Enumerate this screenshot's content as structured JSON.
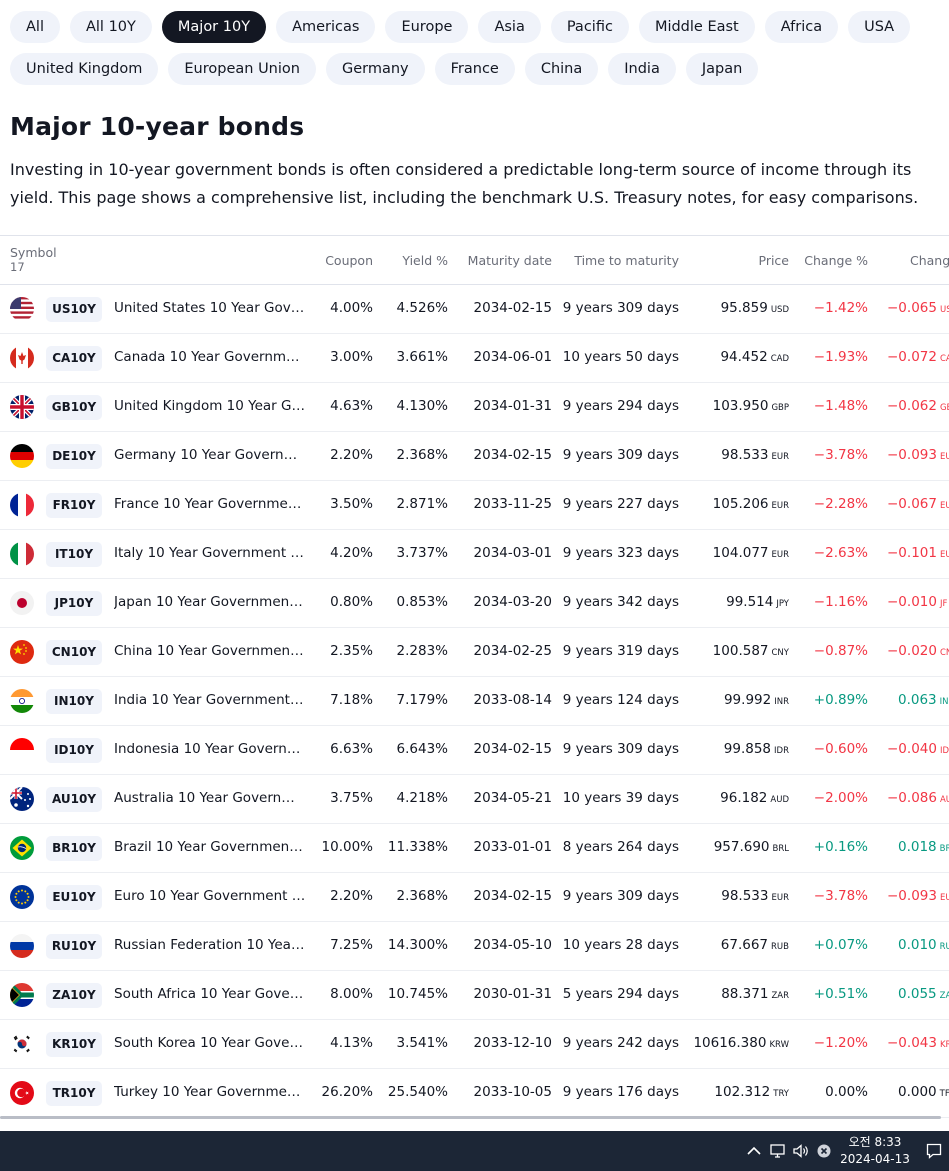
{
  "filters": {
    "row1": [
      "All",
      "All 10Y",
      "Major 10Y",
      "Americas",
      "Europe",
      "Asia",
      "Pacific",
      "Middle East",
      "Africa",
      "USA"
    ],
    "row2": [
      "United Kingdom",
      "European Union",
      "Germany",
      "France",
      "China",
      "India",
      "Japan"
    ],
    "active": "Major 10Y"
  },
  "page": {
    "title": "Major 10-year bonds",
    "description": "Investing in 10-year government bonds is often considered a predictable long-term source of income through its yield. This page shows a comprehensive list, including the benchmark U.S. Treasury notes, for easy comparisons."
  },
  "table": {
    "headers": {
      "symbol": "Symbol",
      "count": "17",
      "coupon": "Coupon",
      "yield": "Yield %",
      "maturity": "Maturity date",
      "time": "Time to maturity",
      "price": "Price",
      "change_pct": "Change %",
      "change": "Chang"
    },
    "rows": [
      {
        "flag": "us-flag-icon",
        "symbol": "US10Y",
        "name": "United States 10 Year Government Bond",
        "coupon": "4.00%",
        "yield": "4.526%",
        "maturity": "2034-02-15",
        "time": "9 years 309 days",
        "price": "95.859",
        "currency": "USD",
        "change_pct": "−1.42%",
        "change": "−0.065",
        "change_unit": "US",
        "direction": "down"
      },
      {
        "flag": "ca-flag-icon",
        "symbol": "CA10Y",
        "name": "Canada 10 Year Government Bond",
        "coupon": "3.00%",
        "yield": "3.661%",
        "maturity": "2034-06-01",
        "time": "10 years 50 days",
        "price": "94.452",
        "currency": "CAD",
        "change_pct": "−1.93%",
        "change": "−0.072",
        "change_unit": "CA",
        "direction": "down"
      },
      {
        "flag": "gb-flag-icon",
        "symbol": "GB10Y",
        "name": "United Kingdom 10 Year Government Bond",
        "coupon": "4.63%",
        "yield": "4.130%",
        "maturity": "2034-01-31",
        "time": "9 years 294 days",
        "price": "103.950",
        "currency": "GBP",
        "change_pct": "−1.48%",
        "change": "−0.062",
        "change_unit": "GE",
        "direction": "down"
      },
      {
        "flag": "de-flag-icon",
        "symbol": "DE10Y",
        "name": "Germany 10 Year Government Bond",
        "coupon": "2.20%",
        "yield": "2.368%",
        "maturity": "2034-02-15",
        "time": "9 years 309 days",
        "price": "98.533",
        "currency": "EUR",
        "change_pct": "−3.78%",
        "change": "−0.093",
        "change_unit": "EU",
        "direction": "down"
      },
      {
        "flag": "fr-flag-icon",
        "symbol": "FR10Y",
        "name": "France 10 Year Government Bond",
        "coupon": "3.50%",
        "yield": "2.871%",
        "maturity": "2033-11-25",
        "time": "9 years 227 days",
        "price": "105.206",
        "currency": "EUR",
        "change_pct": "−2.28%",
        "change": "−0.067",
        "change_unit": "EU",
        "direction": "down"
      },
      {
        "flag": "it-flag-icon",
        "symbol": "IT10Y",
        "name": "Italy 10 Year Government Bond",
        "coupon": "4.20%",
        "yield": "3.737%",
        "maturity": "2034-03-01",
        "time": "9 years 323 days",
        "price": "104.077",
        "currency": "EUR",
        "change_pct": "−2.63%",
        "change": "−0.101",
        "change_unit": "EU",
        "direction": "down"
      },
      {
        "flag": "jp-flag-icon",
        "symbol": "JP10Y",
        "name": "Japan 10 Year Government Bond",
        "coupon": "0.80%",
        "yield": "0.853%",
        "maturity": "2034-03-20",
        "time": "9 years 342 days",
        "price": "99.514",
        "currency": "JPY",
        "change_pct": "−1.16%",
        "change": "−0.010",
        "change_unit": "JF",
        "direction": "down"
      },
      {
        "flag": "cn-flag-icon",
        "symbol": "CN10Y",
        "name": "China 10 Year Government Bond",
        "coupon": "2.35%",
        "yield": "2.283%",
        "maturity": "2034-02-25",
        "time": "9 years 319 days",
        "price": "100.587",
        "currency": "CNY",
        "change_pct": "−0.87%",
        "change": "−0.020",
        "change_unit": "CN",
        "direction": "down"
      },
      {
        "flag": "in-flag-icon",
        "symbol": "IN10Y",
        "name": "India 10 Year Government Bond",
        "coupon": "7.18%",
        "yield": "7.179%",
        "maturity": "2033-08-14",
        "time": "9 years 124 days",
        "price": "99.992",
        "currency": "INR",
        "change_pct": "+0.89%",
        "change": "0.063",
        "change_unit": "IN",
        "direction": "up"
      },
      {
        "flag": "id-flag-icon",
        "symbol": "ID10Y",
        "name": "Indonesia 10 Year Government Bond",
        "coupon": "6.63%",
        "yield": "6.643%",
        "maturity": "2034-02-15",
        "time": "9 years 309 days",
        "price": "99.858",
        "currency": "IDR",
        "change_pct": "−0.60%",
        "change": "−0.040",
        "change_unit": "ID",
        "direction": "down"
      },
      {
        "flag": "au-flag-icon",
        "symbol": "AU10Y",
        "name": "Australia 10 Year Government Bond",
        "coupon": "3.75%",
        "yield": "4.218%",
        "maturity": "2034-05-21",
        "time": "10 years 39 days",
        "price": "96.182",
        "currency": "AUD",
        "change_pct": "−2.00%",
        "change": "−0.086",
        "change_unit": "AU",
        "direction": "down"
      },
      {
        "flag": "br-flag-icon",
        "symbol": "BR10Y",
        "name": "Brazil 10 Year Government Bond",
        "coupon": "10.00%",
        "yield": "11.338%",
        "maturity": "2033-01-01",
        "time": "8 years 264 days",
        "price": "957.690",
        "currency": "BRL",
        "change_pct": "+0.16%",
        "change": "0.018",
        "change_unit": "BR",
        "direction": "up"
      },
      {
        "flag": "eu-flag-icon",
        "symbol": "EU10Y",
        "name": "Euro 10 Year Government Bond",
        "coupon": "2.20%",
        "yield": "2.368%",
        "maturity": "2034-02-15",
        "time": "9 years 309 days",
        "price": "98.533",
        "currency": "EUR",
        "change_pct": "−3.78%",
        "change": "−0.093",
        "change_unit": "EU",
        "direction": "down"
      },
      {
        "flag": "ru-flag-icon",
        "symbol": "RU10Y",
        "name": "Russian Federation 10 Year Government Bond",
        "coupon": "7.25%",
        "yield": "14.300%",
        "maturity": "2034-05-10",
        "time": "10 years 28 days",
        "price": "67.667",
        "currency": "RUB",
        "change_pct": "+0.07%",
        "change": "0.010",
        "change_unit": "RU",
        "direction": "up"
      },
      {
        "flag": "za-flag-icon",
        "symbol": "ZA10Y",
        "name": "South Africa 10 Year Government Bond",
        "coupon": "8.00%",
        "yield": "10.745%",
        "maturity": "2030-01-31",
        "time": "5 years 294 days",
        "price": "88.371",
        "currency": "ZAR",
        "change_pct": "+0.51%",
        "change": "0.055",
        "change_unit": "ZA",
        "direction": "up"
      },
      {
        "flag": "kr-flag-icon",
        "symbol": "KR10Y",
        "name": "South Korea 10 Year Government Bond",
        "coupon": "4.13%",
        "yield": "3.541%",
        "maturity": "2033-12-10",
        "time": "9 years 242 days",
        "price": "10616.380",
        "currency": "KRW",
        "change_pct": "−1.20%",
        "change": "−0.043",
        "change_unit": "KR",
        "direction": "down"
      },
      {
        "flag": "tr-flag-icon",
        "symbol": "TR10Y",
        "name": "Turkey 10 Year Government Bond",
        "coupon": "26.20%",
        "yield": "25.540%",
        "maturity": "2033-10-05",
        "time": "9 years 176 days",
        "price": "102.312",
        "currency": "TRY",
        "change_pct": "0.00%",
        "change": "0.000",
        "change_unit": "TF",
        "direction": "flat"
      }
    ]
  },
  "colors": {
    "negative": "#f23645",
    "positive": "#089981",
    "chip_bg": "#f0f3fa",
    "chip_active_bg": "#131722",
    "taskbar_bg": "#1c2636"
  },
  "taskbar": {
    "icons": [
      "chevron-up-icon",
      "network-icon",
      "volume-icon",
      "mute-icon",
      "notification-icon"
    ],
    "time": "오전 8:33",
    "date": "2024-04-13"
  }
}
